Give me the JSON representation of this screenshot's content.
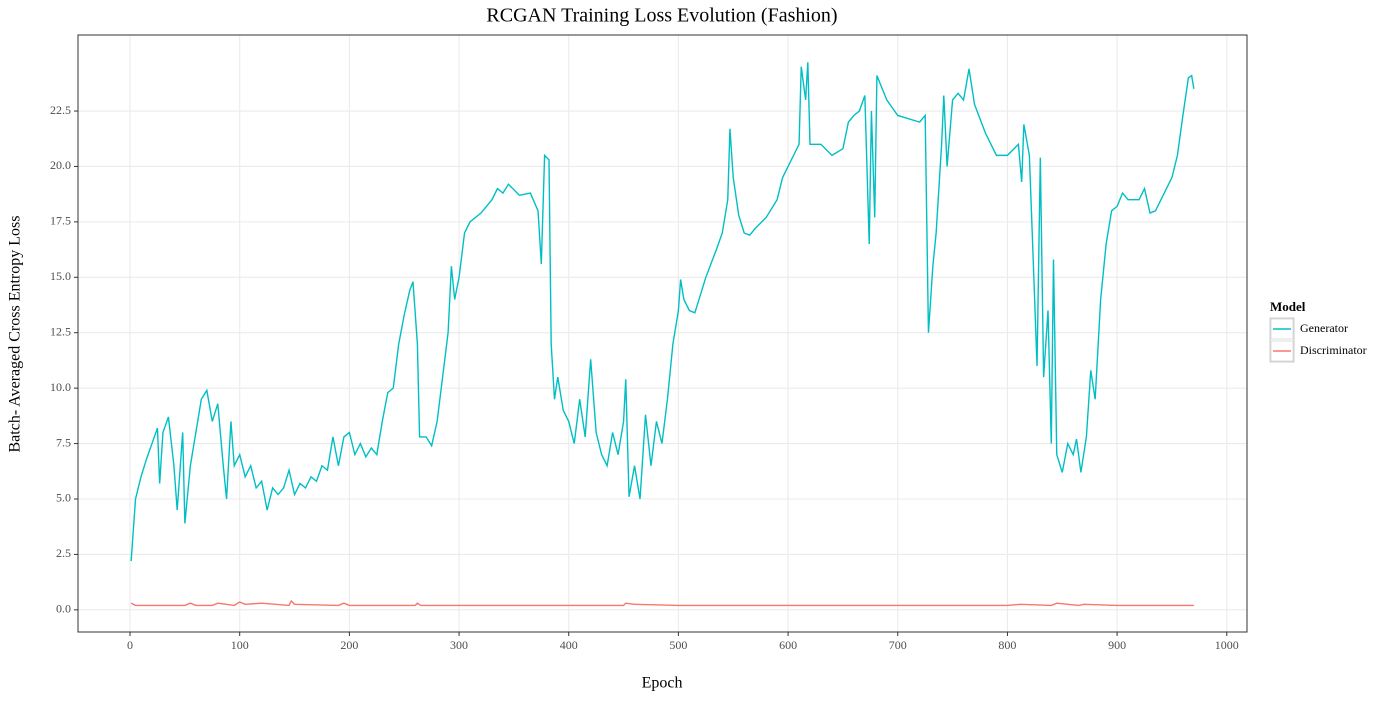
{
  "chart_data": {
    "type": "line",
    "title": "RCGAN Training Loss Evolution (Fashion)",
    "x_label": "Epoch",
    "y_label": "Batch- Averaged Cross Entropy Loss",
    "legend_title": "Model",
    "legend_position": "right",
    "grid": true,
    "xlim": [
      -47.45,
      1018.45
    ],
    "ylim": [
      -1.0,
      25.93
    ],
    "xticks": [
      0,
      100,
      200,
      300,
      400,
      500,
      600,
      700,
      800,
      900,
      1000
    ],
    "yticks": [
      {
        "value": 0,
        "label": "0.0"
      },
      2.5,
      {
        "value": 5,
        "label": "5.0"
      },
      7.5,
      {
        "value": 10,
        "label": "10.0"
      },
      12.5,
      {
        "value": 15,
        "label": "15.0"
      },
      17.5,
      {
        "value": 20,
        "label": "20.0"
      },
      22.5
    ],
    "series": [
      {
        "name": "Generator",
        "color": "#00BFC4",
        "x": [
          1,
          5,
          10,
          15,
          20,
          25,
          27,
          30,
          35,
          40,
          43,
          48,
          50,
          55,
          60,
          65,
          70,
          75,
          80,
          85,
          88,
          92,
          95,
          100,
          105,
          110,
          115,
          120,
          125,
          130,
          135,
          140,
          145,
          150,
          155,
          160,
          165,
          170,
          175,
          180,
          185,
          190,
          195,
          200,
          205,
          210,
          215,
          220,
          225,
          230,
          235,
          240,
          245,
          250,
          255,
          258,
          262,
          264,
          270,
          275,
          280,
          285,
          290,
          293,
          296,
          300,
          305,
          310,
          320,
          330,
          335,
          340,
          345,
          355,
          365,
          372,
          375,
          378,
          382,
          384,
          387,
          390,
          395,
          400,
          405,
          410,
          415,
          420,
          425,
          430,
          435,
          440,
          445,
          450,
          452,
          455,
          460,
          465,
          470,
          475,
          480,
          485,
          490,
          495,
          500,
          502,
          505,
          510,
          515,
          520,
          525,
          535,
          540,
          545,
          547,
          550,
          555,
          560,
          565,
          570,
          580,
          590,
          595,
          600,
          605,
          610,
          612,
          616,
          618,
          620,
          630,
          640,
          650,
          655,
          660,
          665,
          670,
          674,
          676,
          679,
          681,
          690,
          700,
          720,
          725,
          728,
          732,
          735,
          740,
          742,
          745,
          750,
          755,
          760,
          765,
          770,
          780,
          790,
          800,
          810,
          813,
          815,
          820,
          823,
          827,
          830,
          833,
          837,
          840,
          842,
          845,
          850,
          855,
          860,
          863,
          867,
          872,
          876,
          880,
          885,
          890,
          895,
          900,
          905,
          910,
          920,
          925,
          930,
          935,
          940,
          950,
          955,
          960,
          965,
          968,
          970
        ],
        "values": [
          2.2,
          5.0,
          6.0,
          6.8,
          7.5,
          8.2,
          5.7,
          8.0,
          8.7,
          6.5,
          4.5,
          8.0,
          3.9,
          6.5,
          8.0,
          9.5,
          9.9,
          8.5,
          9.3,
          6.5,
          5.0,
          8.5,
          6.5,
          7.0,
          6.0,
          6.5,
          5.5,
          5.8,
          4.5,
          5.5,
          5.2,
          5.5,
          6.3,
          5.2,
          5.7,
          5.5,
          6.0,
          5.8,
          6.5,
          6.3,
          7.8,
          6.5,
          7.8,
          8.0,
          7.0,
          7.5,
          6.9,
          7.3,
          7.0,
          8.5,
          9.8,
          10.0,
          12.0,
          13.3,
          14.4,
          14.8,
          12.0,
          7.8,
          7.8,
          7.4,
          8.5,
          10.5,
          12.5,
          15.5,
          14.0,
          15.0,
          17.0,
          17.5,
          17.9,
          18.5,
          19.0,
          18.8,
          19.2,
          18.7,
          18.8,
          18.0,
          15.6,
          20.5,
          20.3,
          12.0,
          9.5,
          10.5,
          9.0,
          8.5,
          7.5,
          9.5,
          7.8,
          11.3,
          8.0,
          7.0,
          6.5,
          8.0,
          7.0,
          8.5,
          10.4,
          5.1,
          6.5,
          5.0,
          8.8,
          6.5,
          8.5,
          7.5,
          9.5,
          12.0,
          13.5,
          14.9,
          14.0,
          13.5,
          13.4,
          14.2,
          15.0,
          16.3,
          17.0,
          18.5,
          21.7,
          19.5,
          17.8,
          17.0,
          16.9,
          17.2,
          17.7,
          18.5,
          19.5,
          20.0,
          20.5,
          21.0,
          24.5,
          23.0,
          24.7,
          21.0,
          21.0,
          20.5,
          20.8,
          22.0,
          22.3,
          22.5,
          23.2,
          16.5,
          22.5,
          17.7,
          24.1,
          23.0,
          22.3,
          22.0,
          22.3,
          12.5,
          15.5,
          17.0,
          21.0,
          23.2,
          20.0,
          23.0,
          23.3,
          23.0,
          24.4,
          22.8,
          21.5,
          20.5,
          20.5,
          21.0,
          19.3,
          21.9,
          20.5,
          16.5,
          11.0,
          20.4,
          10.5,
          13.5,
          7.5,
          15.8,
          7.0,
          6.2,
          7.5,
          7.0,
          7.7,
          6.2,
          7.8,
          10.8,
          9.5,
          14.0,
          16.5,
          18.0,
          18.2,
          18.8,
          18.5,
          18.5,
          19.0,
          17.9,
          18.0,
          18.5,
          19.5,
          20.5,
          22.3,
          24.0,
          24.1,
          23.5
        ]
      },
      {
        "name": "Discriminator",
        "color": "#F8766D",
        "x": [
          1,
          5,
          30,
          50,
          55,
          60,
          75,
          80,
          95,
          100,
          105,
          120,
          145,
          147,
          150,
          190,
          195,
          200,
          260,
          262,
          265,
          300,
          400,
          430,
          450,
          452,
          460,
          500,
          600,
          700,
          800,
          812,
          840,
          845,
          865,
          870,
          900,
          970
        ],
        "values": [
          0.3,
          0.2,
          0.2,
          0.2,
          0.3,
          0.2,
          0.2,
          0.3,
          0.2,
          0.35,
          0.25,
          0.3,
          0.2,
          0.4,
          0.25,
          0.2,
          0.3,
          0.2,
          0.2,
          0.3,
          0.2,
          0.2,
          0.2,
          0.2,
          0.2,
          0.3,
          0.25,
          0.2,
          0.2,
          0.2,
          0.2,
          0.25,
          0.2,
          0.3,
          0.2,
          0.25,
          0.2,
          0.2
        ]
      }
    ]
  }
}
